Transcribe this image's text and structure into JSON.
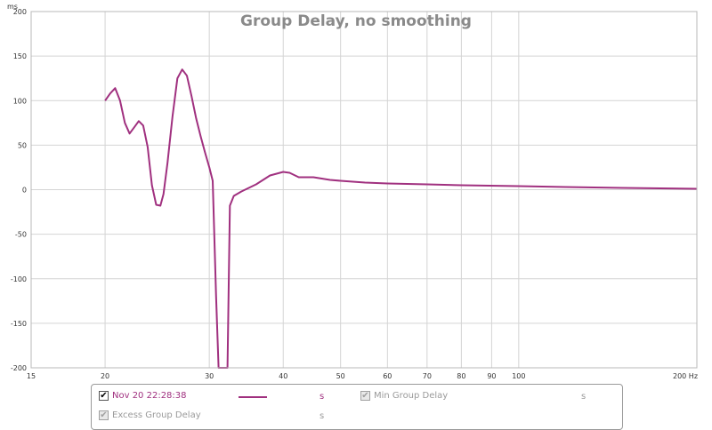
{
  "chart_data": {
    "type": "line",
    "title": "Group Delay, no smoothing",
    "ylabel": "ms",
    "xlabel_unit": "Hz",
    "x_scale": "log",
    "xlim": [
      15,
      200
    ],
    "ylim": [
      -200,
      200
    ],
    "grid": true,
    "y_ticks": [
      200,
      150,
      100,
      50,
      0,
      -50,
      -100,
      -150,
      -200
    ],
    "x_ticks": [
      15,
      20,
      30,
      40,
      50,
      60,
      70,
      80,
      90,
      100,
      200
    ],
    "x_tick_labels": [
      "15",
      "20",
      "30",
      "40",
      "50",
      "60",
      "70",
      "80",
      "90",
      "100",
      "200 Hz"
    ],
    "series": [
      {
        "name": "Nov 20 22:28:38",
        "color": "#a0307f",
        "x": [
          20.0,
          20.4,
          20.8,
          21.2,
          21.6,
          22.0,
          22.4,
          22.8,
          23.2,
          23.6,
          24.0,
          24.4,
          24.8,
          25.1,
          25.5,
          26.0,
          26.5,
          27.0,
          27.5,
          28.0,
          28.5,
          29.0,
          29.5,
          30.0,
          30.4,
          30.8,
          31.1,
          31.2,
          31.3,
          31.5,
          31.9,
          32.2,
          32.3,
          32.5,
          33.0,
          34.0,
          36.0,
          38.0,
          40.0,
          41.0,
          42.5,
          45.0,
          48.0,
          50.0,
          55.0,
          60.0,
          70.0,
          80.0,
          100.0,
          120.0,
          150.0,
          200.0
        ],
        "y": [
          100,
          108,
          114,
          100,
          75,
          63,
          70,
          77,
          72,
          48,
          5,
          -17,
          -18,
          -5,
          30,
          82,
          125,
          135,
          128,
          105,
          80,
          60,
          42,
          25,
          10,
          -120,
          -200,
          -200,
          -200,
          -200,
          -200,
          -200,
          -140,
          -18,
          -7,
          -2,
          6,
          16,
          20,
          19,
          14,
          14,
          11,
          10,
          8,
          7,
          6,
          5,
          4,
          3,
          2,
          1
        ]
      }
    ]
  },
  "legend": {
    "series_label": "Nov 20 22:28:38",
    "series_unit": "s",
    "min_label": "Min Group Delay",
    "min_unit": "s",
    "excess_label": "Excess Group Delay",
    "excess_unit": "s",
    "check_glyph": "✔"
  }
}
